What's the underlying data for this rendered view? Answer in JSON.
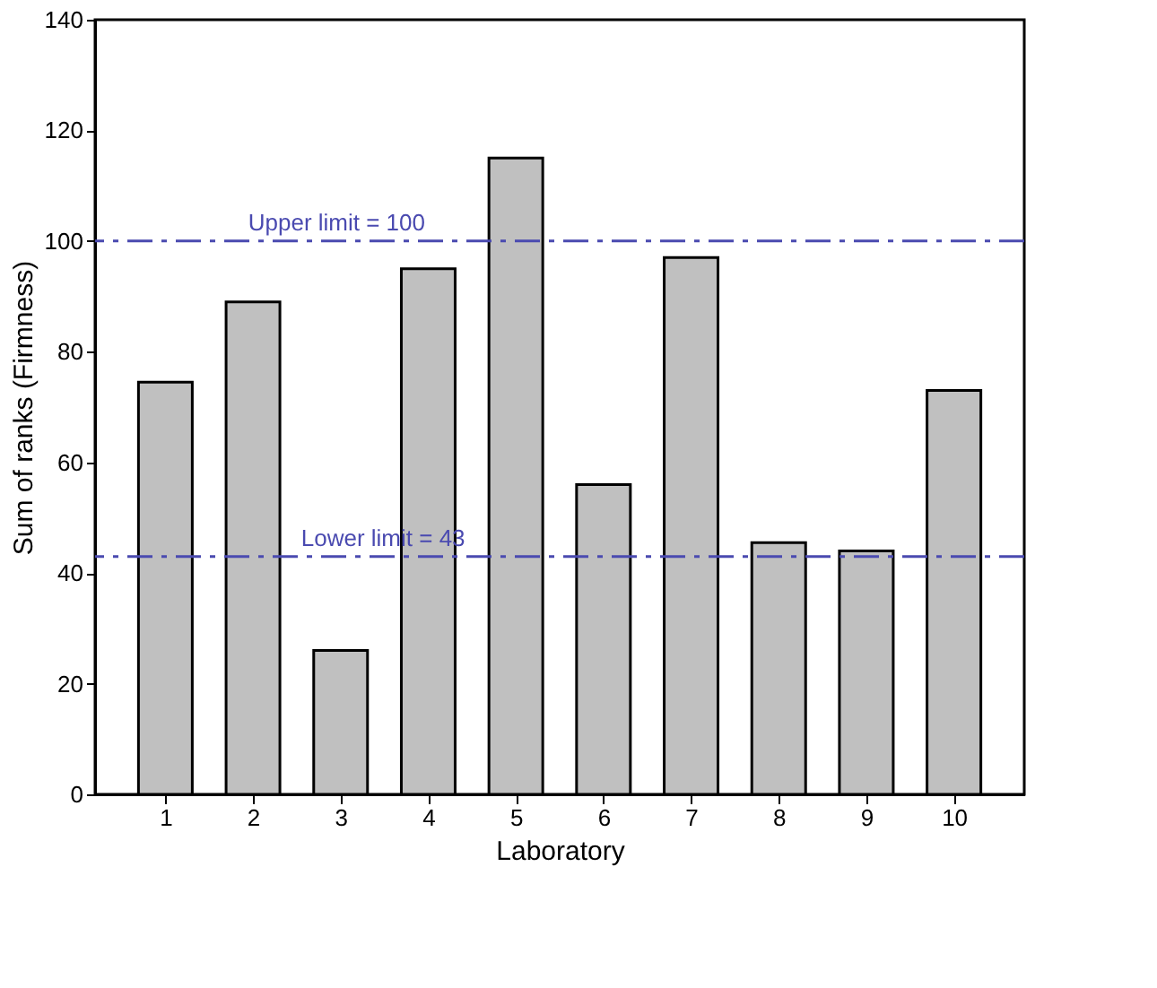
{
  "chart_data": {
    "type": "bar",
    "xlabel": "Laboratory",
    "ylabel": "Sum of ranks (Firmness)",
    "categories": [
      "1",
      "2",
      "3",
      "4",
      "5",
      "6",
      "7",
      "8",
      "9",
      "10"
    ],
    "values": [
      74.5,
      89,
      26,
      95,
      115,
      56,
      97,
      45.5,
      44,
      73
    ],
    "color": "#c0c0c0",
    "ylim": [
      0,
      140
    ],
    "yticks": [
      0,
      20,
      40,
      60,
      80,
      100,
      120,
      140
    ],
    "grid": false,
    "ref_lines": [
      {
        "axis": "y",
        "value": 100,
        "label": "Upper limit = 100",
        "color": "#4a4ab0",
        "line_style": "dashed"
      },
      {
        "axis": "y",
        "value": 43,
        "label": "Lower limit = 43",
        "color": "#4a4ab0",
        "line_style": "dashed"
      }
    ]
  }
}
